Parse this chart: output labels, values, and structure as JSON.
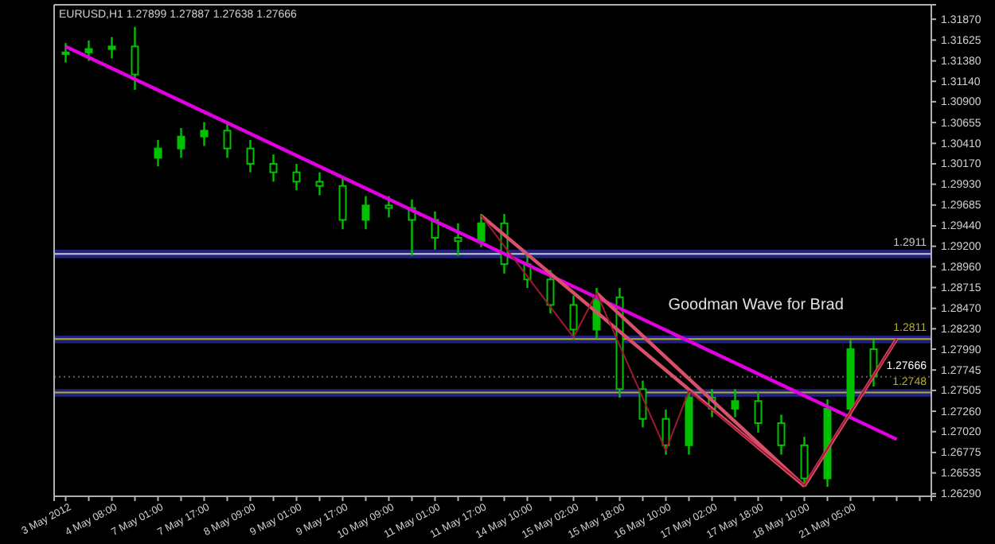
{
  "chart_data": {
    "type": "candlestick",
    "title": "EURUSD,H1  1.27899 1.27887 1.27638 1.27666",
    "annotations": [
      "Goodman Wave for Brad"
    ],
    "categories": [
      "3 May 2012",
      null,
      "4 May 08:00",
      null,
      "7 May 01:00",
      null,
      "7 May 17:00",
      null,
      "8 May 09:00",
      null,
      "9 May 01:00",
      null,
      "9 May 17:00",
      null,
      "10 May 09:00",
      null,
      "11 May 01:00",
      null,
      "11 May 17:00",
      null,
      "14 May 10:00",
      null,
      "15 May 02:00",
      null,
      "15 May 18:00",
      null,
      "16 May 10:00",
      null,
      "17 May 02:00",
      null,
      "17 May 18:00",
      null,
      "18 May 10:00",
      null,
      "21 May 05:00",
      null,
      null,
      null
    ],
    "ohlc": [
      [
        1.3146,
        1.3159,
        1.3136,
        1.3148
      ],
      [
        1.3148,
        1.3162,
        1.3138,
        1.3152
      ],
      [
        1.3152,
        1.3166,
        1.3141,
        1.3155
      ],
      [
        1.3155,
        1.3178,
        1.3104,
        1.3122
      ],
      [
        1.3024,
        1.3045,
        1.3014,
        1.3035
      ],
      [
        1.3035,
        1.3059,
        1.3024,
        1.3049
      ],
      [
        1.3049,
        1.3066,
        1.3038,
        1.3056
      ],
      [
        1.3056,
        1.3066,
        1.3024,
        1.3035
      ],
      [
        1.3035,
        1.3045,
        1.3007,
        1.3017
      ],
      [
        1.3017,
        1.3028,
        1.2996,
        1.3007
      ],
      [
        1.3007,
        1.3017,
        1.2986,
        1.2996
      ],
      [
        1.2996,
        1.3007,
        1.298,
        1.2991
      ],
      [
        1.2991,
        1.3002,
        1.294,
        1.2951
      ],
      [
        1.2951,
        1.2979,
        1.294,
        1.2968
      ],
      [
        1.2968,
        1.2979,
        1.2954,
        1.2965
      ],
      [
        1.2965,
        1.2975,
        1.2909,
        1.2951
      ],
      [
        1.2951,
        1.2961,
        1.2916,
        1.293
      ],
      [
        1.293,
        1.2947,
        1.2909,
        1.2926
      ],
      [
        1.2926,
        1.2958,
        1.2919,
        1.2947
      ],
      [
        1.2947,
        1.2958,
        1.2888,
        1.2899
      ],
      [
        1.2899,
        1.2909,
        1.2871,
        1.2881
      ],
      [
        1.2881,
        1.2892,
        1.2841,
        1.2851
      ],
      [
        1.2851,
        1.2862,
        1.281,
        1.2822
      ],
      [
        1.2822,
        1.2871,
        1.2811,
        1.286
      ],
      [
        1.286,
        1.2871,
        1.2742,
        1.2752
      ],
      [
        1.2752,
        1.2762,
        1.2707,
        1.2717
      ],
      [
        1.2717,
        1.2728,
        1.2675,
        1.2686
      ],
      [
        1.2686,
        1.2752,
        1.2675,
        1.2742
      ],
      [
        1.2742,
        1.2752,
        1.2719,
        1.2729
      ],
      [
        1.2729,
        1.2752,
        1.2719,
        1.2738
      ],
      [
        1.2738,
        1.2749,
        1.2701,
        1.2712
      ],
      [
        1.2712,
        1.2722,
        1.2675,
        1.2686
      ],
      [
        1.2686,
        1.2696,
        1.2637,
        1.2647
      ],
      [
        1.2647,
        1.274,
        1.2637,
        1.2729
      ],
      [
        1.2729,
        1.281,
        1.2719,
        1.2799
      ],
      [
        1.2799,
        1.281,
        1.2755,
        1.2767
      ],
      null,
      null
    ],
    "color": "#00c000",
    "series": [
      {
        "type": "line",
        "color": "#e000e0",
        "values": [
          1.3155,
          null,
          null,
          null,
          null,
          null,
          null,
          null,
          null,
          null,
          null,
          null,
          null,
          null,
          null,
          null,
          null,
          null,
          null,
          null,
          null,
          null,
          null,
          null,
          null,
          null,
          null,
          null,
          null,
          null,
          null,
          null,
          null,
          null,
          null,
          null,
          1.2693,
          null
        ]
      },
      {
        "type": "line",
        "color": "#d8506a",
        "values": [
          null,
          null,
          null,
          null,
          null,
          null,
          null,
          null,
          null,
          null,
          null,
          null,
          null,
          null,
          null,
          null,
          null,
          null,
          1.2956,
          null,
          null,
          null,
          null,
          null,
          null,
          null,
          null,
          null,
          null,
          null,
          null,
          null,
          1.2638,
          null,
          null,
          null,
          null,
          null
        ]
      },
      {
        "type": "line",
        "color": "#d8506a",
        "values": [
          null,
          null,
          null,
          null,
          null,
          null,
          null,
          null,
          null,
          null,
          null,
          null,
          null,
          null,
          null,
          null,
          null,
          null,
          null,
          null,
          null,
          null,
          null,
          1.2865,
          null,
          null,
          null,
          null,
          null,
          null,
          null,
          null,
          1.2638,
          null,
          null,
          null,
          null,
          null
        ]
      },
      {
        "type": "line",
        "color": "#d8506a",
        "values": [
          null,
          null,
          null,
          null,
          null,
          null,
          null,
          null,
          null,
          null,
          null,
          null,
          null,
          null,
          null,
          null,
          null,
          null,
          null,
          null,
          null,
          null,
          null,
          null,
          null,
          null,
          null,
          null,
          null,
          null,
          null,
          null,
          1.2638,
          null,
          null,
          null,
          1.2811,
          null
        ]
      },
      {
        "type": "line",
        "color": "#a01830",
        "values": [
          null,
          null,
          null,
          null,
          null,
          null,
          null,
          null,
          null,
          null,
          null,
          null,
          null,
          null,
          null,
          null,
          null,
          null,
          1.2956,
          null,
          null,
          null,
          1.2813,
          1.2865,
          null,
          null,
          1.268,
          1.275,
          null,
          null,
          null,
          null,
          1.2639,
          null,
          null,
          null,
          1.2811,
          null
        ]
      }
    ],
    "ylim": [
      1.2626,
      1.3204
    ],
    "yticks": [
      {
        "value": 1.3187,
        "label": "1.31870"
      },
      {
        "value": 1.31625,
        "label": "1.31625"
      },
      {
        "value": 1.3138,
        "label": "1.31380"
      },
      {
        "value": 1.3114,
        "label": "1.31140"
      },
      {
        "value": 1.309,
        "label": "1.30900"
      },
      {
        "value": 1.30655,
        "label": "1.30655"
      },
      {
        "value": 1.3041,
        "label": "1.30410"
      },
      {
        "value": 1.3017,
        "label": "1.30170"
      },
      {
        "value": 1.2993,
        "label": "1.29930"
      },
      {
        "value": 1.29685,
        "label": "1.29685"
      },
      {
        "value": 1.2944,
        "label": "1.29440"
      },
      {
        "value": 1.292,
        "label": "1.29200"
      },
      {
        "value": 1.2896,
        "label": "1.28960"
      },
      {
        "value": 1.28715,
        "label": "1.28715"
      },
      {
        "value": 1.2847,
        "label": "1.28470"
      },
      {
        "value": 1.2823,
        "label": "1.28230"
      },
      {
        "value": 1.2799,
        "label": "1.27990"
      },
      {
        "value": 1.27745,
        "label": "1.27745"
      },
      {
        "value": 1.27505,
        "label": "1.27505"
      },
      {
        "value": 1.2726,
        "label": "1.27260"
      },
      {
        "value": 1.2702,
        "label": "1.27020"
      },
      {
        "value": 1.26775,
        "label": "1.26775"
      },
      {
        "value": 1.26535,
        "label": "1.26535"
      },
      {
        "value": 1.2629,
        "label": "1.26290"
      }
    ],
    "bands": [
      {
        "axis": "y",
        "from": 1.2906,
        "to": 1.2916,
        "color": "#26268c"
      },
      {
        "axis": "y",
        "from": 1.2806,
        "to": 1.2815,
        "color": "#26268c"
      },
      {
        "axis": "y",
        "from": 1.2743,
        "to": 1.2752,
        "color": "#26268c"
      }
    ],
    "ref_lines": [
      {
        "axis": "y",
        "value": 1.2911,
        "label": "1.2911",
        "color": "#c8c8c8"
      },
      {
        "axis": "y",
        "value": 1.2811,
        "label": "1.2811",
        "color": "#b0b020"
      },
      {
        "axis": "y",
        "value": 1.2748,
        "label": "1.2748",
        "color": "#b0b020"
      },
      {
        "axis": "y",
        "value": 1.27666,
        "label": "1.27666",
        "color": "#606060",
        "line_style": "dotted"
      }
    ],
    "grid": false
  }
}
